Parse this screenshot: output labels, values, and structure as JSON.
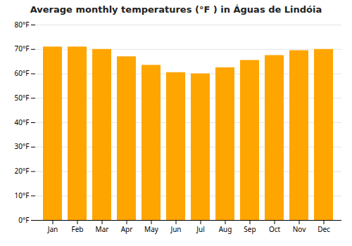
{
  "chart_data": {
    "type": "bar",
    "title": "Average monthly temperatures (°F ) in Águas de Lindóia",
    "categories": [
      "Jan",
      "Feb",
      "Mar",
      "Apr",
      "May",
      "Jun",
      "Jul",
      "Aug",
      "Sep",
      "Oct",
      "Nov",
      "Dec"
    ],
    "values": [
      71,
      71,
      70,
      67,
      63.5,
      60.5,
      60,
      62.5,
      65.5,
      67.5,
      69.5,
      70
    ],
    "color": "#FFA500",
    "ylim": [
      0,
      80
    ],
    "yticks": [
      {
        "value": 0,
        "label": "0°F"
      },
      {
        "value": 10,
        "label": "10°F"
      },
      {
        "value": 20,
        "label": "20°F"
      },
      {
        "value": 30,
        "label": "30°F"
      },
      {
        "value": 40,
        "label": "40°F"
      },
      {
        "value": 50,
        "label": "50°F"
      },
      {
        "value": 60,
        "label": "60°F"
      },
      {
        "value": 70,
        "label": "70°F"
      },
      {
        "value": 80,
        "label": "80°F"
      }
    ],
    "grid": true
  }
}
